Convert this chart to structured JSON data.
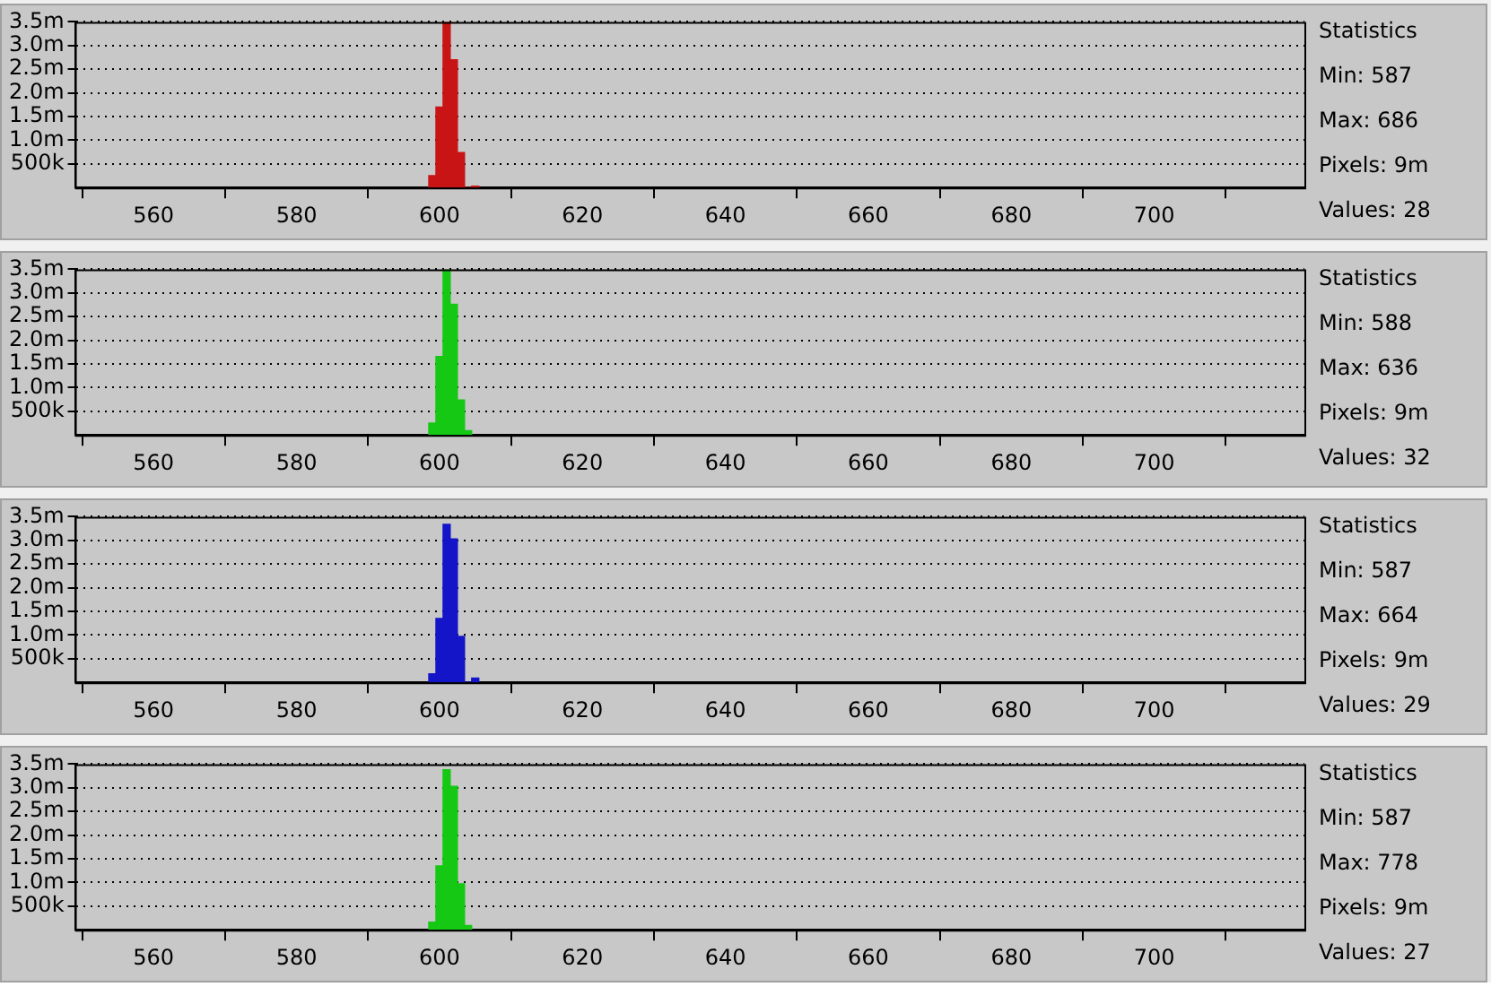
{
  "chart_data": [
    {
      "type": "histogram",
      "bins": [
        598.5,
        599.5,
        600.5,
        601.5,
        602.5,
        603.5,
        604.5,
        605.5
      ],
      "values": [
        250000,
        1700000,
        3500000,
        2700000,
        740000,
        0,
        30000
      ],
      "color": "#c81414",
      "xlim": [
        549,
        721
      ],
      "xticks": [
        560,
        580,
        600,
        620,
        640,
        660,
        680,
        700
      ],
      "ylim": [
        0,
        3500000
      ],
      "yticks": [
        {
          "value": 500000,
          "label": "500k"
        },
        {
          "value": 1000000,
          "label": "1.0m"
        },
        {
          "value": 1500000,
          "label": "1.5m"
        },
        {
          "value": 2000000,
          "label": "2.0m"
        },
        {
          "value": 2500000,
          "label": "2.5m"
        },
        {
          "value": 3000000,
          "label": "3.0m"
        },
        {
          "value": 3500000,
          "label": "3.5m"
        }
      ],
      "grid": "y",
      "legend": false,
      "annotations": [
        "Statistics",
        "Min: 587",
        "Max: 686",
        "Pixels: 9m",
        "Values: 28"
      ]
    },
    {
      "type": "histogram",
      "bins": [
        598.5,
        599.5,
        600.5,
        601.5,
        602.5,
        603.5,
        604.5
      ],
      "values": [
        250000,
        1660000,
        3500000,
        2760000,
        740000,
        90000
      ],
      "color": "#14c814",
      "xlim": [
        549,
        721
      ],
      "xticks": [
        560,
        580,
        600,
        620,
        640,
        660,
        680,
        700
      ],
      "ylim": [
        0,
        3500000
      ],
      "yticks": [
        {
          "value": 500000,
          "label": "500k"
        },
        {
          "value": 1000000,
          "label": "1.0m"
        },
        {
          "value": 1500000,
          "label": "1.5m"
        },
        {
          "value": 2000000,
          "label": "2.0m"
        },
        {
          "value": 2500000,
          "label": "2.5m"
        },
        {
          "value": 3000000,
          "label": "3.0m"
        },
        {
          "value": 3500000,
          "label": "3.5m"
        }
      ],
      "grid": "y",
      "legend": false,
      "annotations": [
        "Statistics",
        "Min: 588",
        "Max: 636",
        "Pixels: 9m",
        "Values: 32"
      ]
    },
    {
      "type": "histogram",
      "bins": [
        598.5,
        599.5,
        600.5,
        601.5,
        602.5,
        603.5,
        604.5,
        605.5
      ],
      "values": [
        180000,
        1350000,
        3340000,
        3030000,
        970000,
        0,
        90000
      ],
      "color": "#1414c8",
      "xlim": [
        549,
        721
      ],
      "xticks": [
        560,
        580,
        600,
        620,
        640,
        660,
        680,
        700
      ],
      "ylim": [
        0,
        3500000
      ],
      "yticks": [
        {
          "value": 500000,
          "label": "500k"
        },
        {
          "value": 1000000,
          "label": "1.0m"
        },
        {
          "value": 1500000,
          "label": "1.5m"
        },
        {
          "value": 2000000,
          "label": "2.0m"
        },
        {
          "value": 2500000,
          "label": "2.5m"
        },
        {
          "value": 3000000,
          "label": "3.0m"
        },
        {
          "value": 3500000,
          "label": "3.5m"
        }
      ],
      "grid": "y",
      "legend": false,
      "annotations": [
        "Statistics",
        "Min: 587",
        "Max: 664",
        "Pixels: 9m",
        "Values: 29"
      ]
    },
    {
      "type": "histogram",
      "bins": [
        598.5,
        599.5,
        600.5,
        601.5,
        602.5,
        603.5,
        604.5
      ],
      "values": [
        160000,
        1350000,
        3380000,
        3030000,
        970000,
        90000
      ],
      "color": "#14c814",
      "xlim": [
        549,
        721
      ],
      "xticks": [
        560,
        580,
        600,
        620,
        640,
        660,
        680,
        700
      ],
      "ylim": [
        0,
        3500000
      ],
      "yticks": [
        {
          "value": 500000,
          "label": "500k"
        },
        {
          "value": 1000000,
          "label": "1.0m"
        },
        {
          "value": 1500000,
          "label": "1.5m"
        },
        {
          "value": 2000000,
          "label": "2.0m"
        },
        {
          "value": 2500000,
          "label": "2.5m"
        },
        {
          "value": 3000000,
          "label": "3.0m"
        },
        {
          "value": 3500000,
          "label": "3.5m"
        }
      ],
      "grid": "y",
      "legend": false,
      "annotations": [
        "Statistics",
        "Min: 587",
        "Max: 778",
        "Pixels: 9m",
        "Values: 27"
      ]
    }
  ]
}
